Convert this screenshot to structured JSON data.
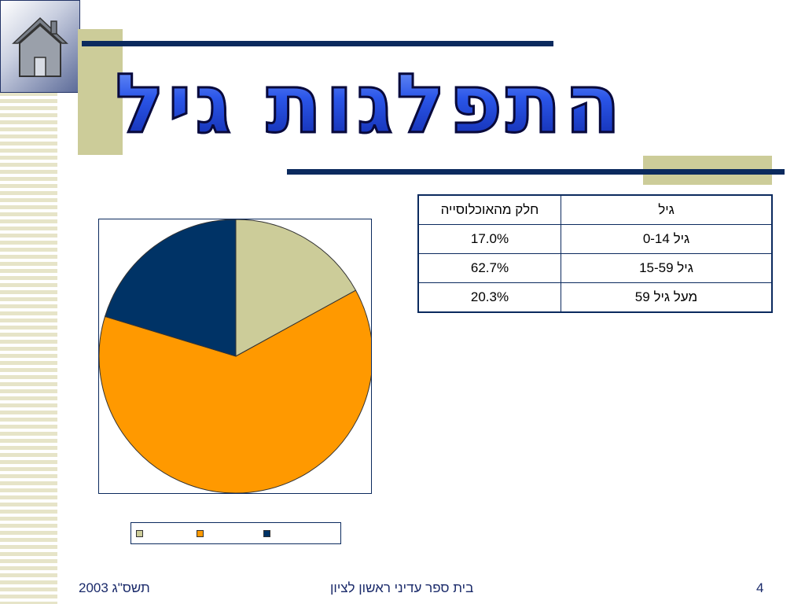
{
  "slide": {
    "title": "התפלגות גיל",
    "footer_date": "תשס\"ג 2003",
    "footer_school": "בית ספר עדיני ראשון לציון",
    "page_number": "4"
  },
  "table": {
    "headers": [
      "גיל",
      "חלק מהאוכלוסייה"
    ],
    "rows": [
      [
        "גיל 0-14",
        "17.0%"
      ],
      [
        "גיל 15-59",
        "62.7%"
      ],
      [
        "מעל גיל 59",
        "20.3%"
      ]
    ]
  },
  "chart_data": {
    "type": "pie",
    "categories": [
      "גיל 0-14",
      "גיל 15-59",
      "מעל גיל 59"
    ],
    "values": [
      17.0,
      62.7,
      20.3
    ],
    "colors": [
      "#cccc99",
      "#ff9900",
      "#003366"
    ],
    "legend": "bottom",
    "title": ""
  },
  "icons": {
    "home": "home-icon"
  }
}
